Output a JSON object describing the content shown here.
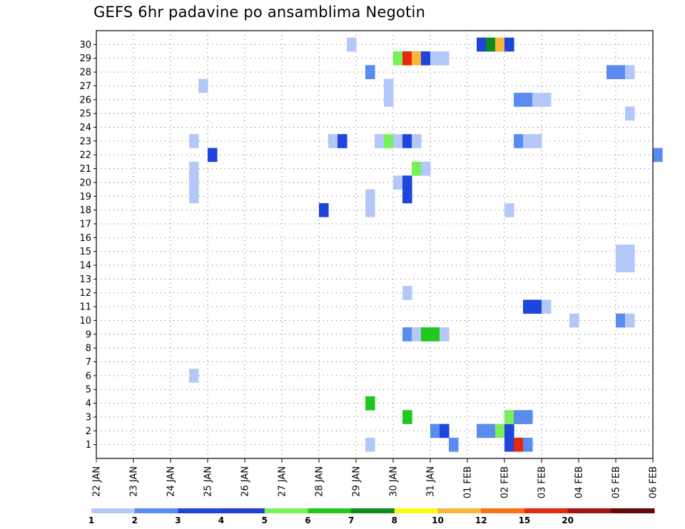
{
  "chart_data": {
    "type": "heatmap",
    "title": "GEFS 6hr padavine po ansamblima Negotin",
    "xlabel": "",
    "ylabel": "",
    "x_tick_labels": [
      "22 JAN",
      "23 JAN",
      "24 JAN",
      "25 JAN",
      "26 JAN",
      "27 JAN",
      "28 JAN",
      "29 JAN",
      "30 JAN",
      "31 JAN",
      "01 FEB",
      "02 FEB",
      "03 FEB",
      "04 FEB",
      "05 FEB",
      "06 FEB"
    ],
    "x_start": "22 JAN 00Z",
    "x_step_hours": 6,
    "y_members": [
      1,
      2,
      3,
      4,
      5,
      6,
      7,
      8,
      9,
      10,
      11,
      12,
      13,
      14,
      15,
      16,
      17,
      18,
      19,
      20,
      21,
      22,
      23,
      24,
      25,
      26,
      27,
      28,
      29,
      30
    ],
    "grid": true,
    "legend_position": "bottom",
    "colorbar": {
      "labels": [
        "1",
        "2",
        "3",
        "4",
        "5",
        "6",
        "7",
        "8",
        "10",
        "12",
        "15",
        "20"
      ],
      "colors": [
        "#b4c8f8",
        "#5a8cf0",
        "#1e46dc",
        "#1f3fd0",
        "#78f05a",
        "#1ec81e",
        "#0f8c1e",
        "#fafa14",
        "#fab43c",
        "#fa6e14",
        "#e6280f",
        "#a01414",
        "#640a0a"
      ]
    },
    "cells": [
      {
        "member": 1,
        "step": 29,
        "level": 0
      },
      {
        "member": 1,
        "step": 38,
        "level": 1
      },
      {
        "member": 1,
        "step": 44,
        "level": 2
      },
      {
        "member": 1,
        "step": 45,
        "level": 10
      },
      {
        "member": 1,
        "step": 46,
        "level": 1
      },
      {
        "member": 2,
        "step": 36,
        "level": 1
      },
      {
        "member": 2,
        "step": 37,
        "level": 2
      },
      {
        "member": 2,
        "step": 41,
        "level": 1
      },
      {
        "member": 2,
        "step": 42,
        "level": 1
      },
      {
        "member": 2,
        "step": 43,
        "level": 4
      },
      {
        "member": 2,
        "step": 44,
        "level": 2
      },
      {
        "member": 3,
        "step": 33,
        "level": 5
      },
      {
        "member": 3,
        "step": 44,
        "level": 4
      },
      {
        "member": 3,
        "step": 45,
        "level": 1
      },
      {
        "member": 3,
        "step": 46,
        "level": 1
      },
      {
        "member": 4,
        "step": 29,
        "level": 5
      },
      {
        "member": 6,
        "step": 10,
        "level": 0
      },
      {
        "member": 9,
        "step": 33,
        "level": 1
      },
      {
        "member": 9,
        "step": 34,
        "level": 0
      },
      {
        "member": 9,
        "step": 35,
        "level": 5
      },
      {
        "member": 9,
        "step": 36,
        "level": 5
      },
      {
        "member": 9,
        "step": 37,
        "level": 0
      },
      {
        "member": 10,
        "step": 51,
        "level": 0
      },
      {
        "member": 10,
        "step": 56,
        "level": 1
      },
      {
        "member": 10,
        "step": 57,
        "level": 0
      },
      {
        "member": 11,
        "step": 46,
        "level": 2
      },
      {
        "member": 11,
        "step": 47,
        "level": 2
      },
      {
        "member": 11,
        "step": 48,
        "level": 0
      },
      {
        "member": 12,
        "step": 33,
        "level": 0
      },
      {
        "member": 14,
        "step": 56,
        "level": 0
      },
      {
        "member": 14,
        "step": 57,
        "level": 0
      },
      {
        "member": 15,
        "step": 56,
        "level": 0
      },
      {
        "member": 15,
        "step": 57,
        "level": 0
      },
      {
        "member": 18,
        "step": 24,
        "level": 2
      },
      {
        "member": 18,
        "step": 29,
        "level": 0
      },
      {
        "member": 18,
        "step": 44,
        "level": 0
      },
      {
        "member": 19,
        "step": 10,
        "level": 0
      },
      {
        "member": 19,
        "step": 29,
        "level": 0
      },
      {
        "member": 19,
        "step": 33,
        "level": 2
      },
      {
        "member": 20,
        "step": 10,
        "level": 0
      },
      {
        "member": 20,
        "step": 32,
        "level": 0
      },
      {
        "member": 20,
        "step": 33,
        "level": 2
      },
      {
        "member": 21,
        "step": 10,
        "level": 0
      },
      {
        "member": 21,
        "step": 34,
        "level": 4
      },
      {
        "member": 21,
        "step": 35,
        "level": 0
      },
      {
        "member": 22,
        "step": 12,
        "level": 2
      },
      {
        "member": 22,
        "step": 60,
        "level": 1
      },
      {
        "member": 23,
        "step": 10,
        "level": 0
      },
      {
        "member": 23,
        "step": 25,
        "level": 0
      },
      {
        "member": 23,
        "step": 26,
        "level": 2
      },
      {
        "member": 23,
        "step": 30,
        "level": 0
      },
      {
        "member": 23,
        "step": 31,
        "level": 4
      },
      {
        "member": 23,
        "step": 32,
        "level": 0
      },
      {
        "member": 23,
        "step": 33,
        "level": 2
      },
      {
        "member": 23,
        "step": 34,
        "level": 0
      },
      {
        "member": 23,
        "step": 45,
        "level": 1
      },
      {
        "member": 23,
        "step": 46,
        "level": 0
      },
      {
        "member": 23,
        "step": 47,
        "level": 0
      },
      {
        "member": 25,
        "step": 57,
        "level": 0
      },
      {
        "member": 26,
        "step": 31,
        "level": 0
      },
      {
        "member": 26,
        "step": 45,
        "level": 1
      },
      {
        "member": 26,
        "step": 46,
        "level": 1
      },
      {
        "member": 26,
        "step": 47,
        "level": 0
      },
      {
        "member": 26,
        "step": 48,
        "level": 0
      },
      {
        "member": 27,
        "step": 11,
        "level": 0
      },
      {
        "member": 27,
        "step": 31,
        "level": 0
      },
      {
        "member": 28,
        "step": 29,
        "level": 1
      },
      {
        "member": 28,
        "step": 55,
        "level": 1
      },
      {
        "member": 28,
        "step": 56,
        "level": 1
      },
      {
        "member": 28,
        "step": 57,
        "level": 0
      },
      {
        "member": 29,
        "step": 32,
        "level": 4
      },
      {
        "member": 29,
        "step": 33,
        "level": 10
      },
      {
        "member": 29,
        "step": 34,
        "level": 8
      },
      {
        "member": 29,
        "step": 35,
        "level": 2
      },
      {
        "member": 29,
        "step": 36,
        "level": 0
      },
      {
        "member": 29,
        "step": 37,
        "level": 0
      },
      {
        "member": 30,
        "step": 27,
        "level": 0
      },
      {
        "member": 30,
        "step": 41,
        "level": 2
      },
      {
        "member": 30,
        "step": 42,
        "level": 6
      },
      {
        "member": 30,
        "step": 43,
        "level": 8
      },
      {
        "member": 30,
        "step": 44,
        "level": 2
      }
    ]
  }
}
